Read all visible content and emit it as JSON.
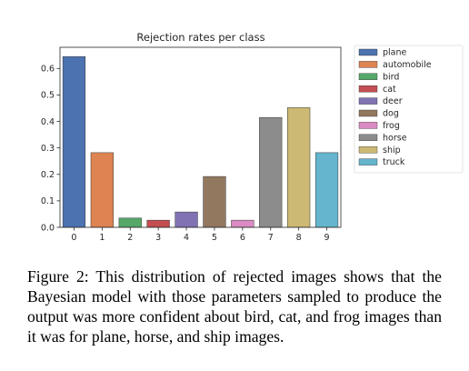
{
  "chart_data": {
    "type": "bar",
    "title": "Rejection rates per class",
    "xlabel": "",
    "ylabel": "",
    "categories": [
      "0",
      "1",
      "2",
      "3",
      "4",
      "5",
      "6",
      "7",
      "8",
      "9"
    ],
    "values": [
      0.645,
      0.282,
      0.035,
      0.027,
      0.058,
      0.192,
      0.027,
      0.415,
      0.452,
      0.282
    ],
    "colors": [
      "#4c72b0",
      "#dd8452",
      "#55a868",
      "#c44e52",
      "#8172b3",
      "#937860",
      "#da8bc3",
      "#8c8c8c",
      "#ccb974",
      "#64b5cd"
    ],
    "ylim": [
      0,
      0.68
    ],
    "yticks": [
      0.0,
      0.1,
      0.2,
      0.3,
      0.4,
      0.5,
      0.6
    ],
    "ytick_labels": [
      "0.0",
      "0.1",
      "0.2",
      "0.3",
      "0.4",
      "0.5",
      "0.6"
    ],
    "grid": false,
    "legend": {
      "placement": "outside-right",
      "entries": [
        "plane",
        "automobile",
        "bird",
        "cat",
        "deer",
        "dog",
        "frog",
        "horse",
        "ship",
        "truck"
      ]
    }
  },
  "caption": {
    "text": "Figure 2:  This distribution of rejected images shows that the Bayesian model with those parameters sampled to produce the output was more confident about bird, cat, and frog images than it was for plane, horse, and ship images."
  }
}
